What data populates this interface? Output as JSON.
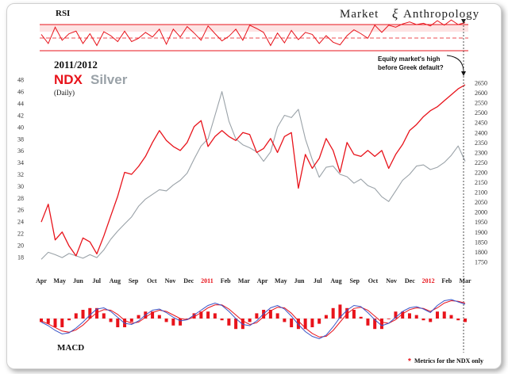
{
  "brand": {
    "word1": "Market",
    "symbol": "ξ",
    "word2": "Anthropology"
  },
  "colors": {
    "ndx": "#e8131b",
    "silver": "#9aa2a8",
    "macd_line": "#3b55c7",
    "signal_line": "#e8131b",
    "grid": "#dddddd"
  },
  "legend": {
    "period": "2011/2012",
    "ndx": "NDX",
    "silver": "Silver",
    "frequency": "(Daily)"
  },
  "rsi_panel": {
    "label": "RSI",
    "overbought": 70,
    "midline": 50,
    "oversold": 30,
    "series": [
      55,
      41,
      66,
      46,
      56,
      60,
      41,
      56,
      38,
      59,
      53,
      44,
      60,
      44,
      49,
      58,
      51,
      63,
      40,
      63,
      51,
      67,
      57,
      46,
      68,
      56,
      45,
      52,
      63,
      46,
      69,
      64,
      58,
      38,
      57,
      42,
      61,
      47,
      58,
      55,
      41,
      53,
      43,
      39,
      53,
      62,
      56,
      49,
      69,
      58,
      69,
      66,
      71,
      74,
      70,
      72,
      68,
      76,
      69,
      77,
      70,
      73
    ]
  },
  "macd_panel": {
    "label": "MACD",
    "footnote_marker": "*",
    "footnote": "Metrics for the NDX only",
    "macd": [
      -6,
      -12,
      -20,
      -26,
      -24,
      -16,
      -6,
      6,
      16,
      18,
      12,
      2,
      -8,
      -10,
      -4,
      6,
      14,
      16,
      10,
      2,
      -4,
      -2,
      6,
      14,
      22,
      26,
      22,
      12,
      0,
      -10,
      -12,
      -4,
      8,
      18,
      22,
      16,
      4,
      -10,
      -22,
      -30,
      -34,
      -28,
      -14,
      2,
      14,
      22,
      20,
      10,
      -2,
      -12,
      -8,
      2,
      12,
      18,
      20,
      16,
      10,
      22,
      30,
      32,
      28,
      24
    ],
    "signal": [
      -4,
      -9,
      -15,
      -21,
      -23,
      -19,
      -11,
      0,
      10,
      15,
      14,
      7,
      -3,
      -8,
      -6,
      2,
      10,
      14,
      12,
      6,
      0,
      -2,
      3,
      10,
      18,
      23,
      23,
      16,
      6,
      -4,
      -10,
      -7,
      3,
      13,
      19,
      18,
      9,
      -4,
      -16,
      -25,
      -31,
      -30,
      -20,
      -6,
      8,
      17,
      19,
      14,
      4,
      -6,
      -8,
      -2,
      8,
      15,
      18,
      17,
      12,
      18,
      26,
      30,
      29,
      26
    ]
  },
  "annotation": {
    "line1": "Equity market's high",
    "line2": "before Greek default?"
  },
  "chart_data": {
    "type": "line",
    "title": "NDX Silver (Daily) 2011/2012",
    "xlabel": "",
    "x_tick_labels": [
      {
        "label": "Apr",
        "year_marker": false
      },
      {
        "label": "May",
        "year_marker": false
      },
      {
        "label": "Jun",
        "year_marker": false
      },
      {
        "label": "Jul",
        "year_marker": false
      },
      {
        "label": "Aug",
        "year_marker": false
      },
      {
        "label": "Sep",
        "year_marker": false
      },
      {
        "label": "Oct",
        "year_marker": false
      },
      {
        "label": "Nov",
        "year_marker": false
      },
      {
        "label": "Dec",
        "year_marker": false
      },
      {
        "label": "2011",
        "year_marker": true
      },
      {
        "label": "Feb",
        "year_marker": false
      },
      {
        "label": "Mar",
        "year_marker": false
      },
      {
        "label": "Apr",
        "year_marker": false
      },
      {
        "label": "May",
        "year_marker": false
      },
      {
        "label": "Jun",
        "year_marker": false
      },
      {
        "label": "Jul",
        "year_marker": false
      },
      {
        "label": "Aug",
        "year_marker": false
      },
      {
        "label": "Sep",
        "year_marker": false
      },
      {
        "label": "Oct",
        "year_marker": false
      },
      {
        "label": "Nov",
        "year_marker": false
      },
      {
        "label": "Dec",
        "year_marker": false
      },
      {
        "label": "2012",
        "year_marker": true
      },
      {
        "label": "Feb",
        "year_marker": false
      },
      {
        "label": "Mar",
        "year_marker": false
      }
    ],
    "left_axis": {
      "name": "Silver",
      "ylim": [
        15.5,
        48.5
      ],
      "ticks": [
        18,
        20,
        22,
        24,
        26,
        28,
        30,
        32,
        34,
        36,
        38,
        40,
        42,
        44,
        46,
        48
      ]
    },
    "right_axis": {
      "name": "NDX",
      "ylim": [
        1700,
        2680
      ],
      "ticks": [
        1750,
        1800,
        1850,
        1900,
        1950,
        2000,
        2050,
        2100,
        2150,
        2200,
        2250,
        2300,
        2350,
        2400,
        2450,
        2500,
        2550,
        2600,
        2650
      ]
    },
    "x_index_range": [
      0,
      23
    ],
    "series": [
      {
        "name": "NDX",
        "axis": "right",
        "color": "#e8131b",
        "values": [
          1950,
          2040,
          1860,
          1900,
          1830,
          1780,
          1870,
          1850,
          1790,
          1880,
          1980,
          2080,
          2200,
          2190,
          2230,
          2280,
          2350,
          2410,
          2360,
          2330,
          2310,
          2350,
          2430,
          2460,
          2330,
          2380,
          2410,
          2380,
          2360,
          2400,
          2390,
          2300,
          2320,
          2370,
          2300,
          2380,
          2400,
          2120,
          2290,
          2220,
          2270,
          2370,
          2310,
          2200,
          2350,
          2290,
          2280,
          2310,
          2280,
          2310,
          2220,
          2290,
          2340,
          2410,
          2440,
          2480,
          2510,
          2530,
          2560,
          2590,
          2620,
          2640
        ]
      },
      {
        "name": "Silver",
        "axis": "left",
        "color": "#9aa2a8",
        "values": [
          17.6,
          18.8,
          18.4,
          17.9,
          18.6,
          18.2,
          17.8,
          18.4,
          17.9,
          19.2,
          21,
          22.4,
          23.6,
          24.8,
          26.6,
          27.8,
          28.6,
          29.4,
          29.2,
          30.2,
          31,
          32.2,
          34.6,
          36.8,
          38,
          42,
          46,
          41,
          38,
          37,
          36.5,
          35.8,
          34.2,
          35.8,
          40,
          42,
          41.6,
          43,
          38,
          34.5,
          31.5,
          33.2,
          33.4,
          32,
          31.6,
          30.5,
          31.2,
          30.1,
          29.6,
          28.2,
          27.4,
          29.2,
          31,
          32,
          33.4,
          33.6,
          32.8,
          33.2,
          34,
          35.2,
          36.8,
          34.2
        ]
      }
    ],
    "annotations": [
      "Equity market's high before Greek default?"
    ]
  }
}
